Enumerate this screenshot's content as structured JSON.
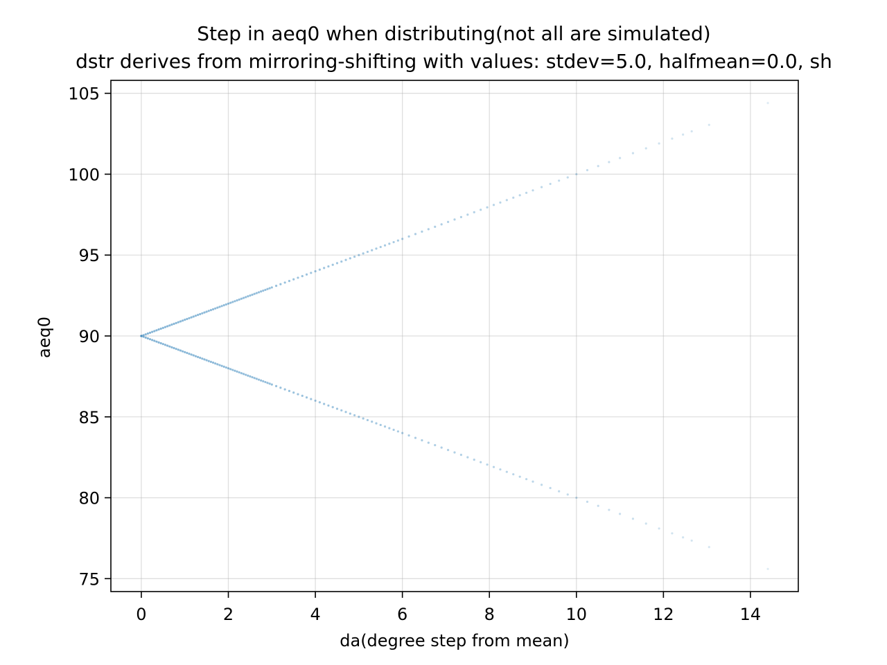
{
  "chart_data": {
    "type": "scatter",
    "title": "Step in aeq0 when distributing(not all are simulated)",
    "subtitle": "dstr derives from mirroring-shifting with values: stdev=5.0, halfmean=0.0, sh",
    "xlabel": "da(degree step from mean)",
    "ylabel": "aeq0",
    "xlim": [
      -0.7,
      15.1
    ],
    "ylim": [
      74.2,
      105.8
    ],
    "xticks": [
      0,
      2,
      4,
      6,
      8,
      10,
      12,
      14
    ],
    "yticks": [
      75,
      80,
      85,
      90,
      95,
      100,
      105
    ],
    "grid": true,
    "color": "#1f77b4",
    "center": 90,
    "series": [
      {
        "x": [
          0.0,
          0.05,
          0.1,
          0.15,
          0.2,
          0.25,
          0.3,
          0.35,
          0.4,
          0.45,
          0.5,
          0.55,
          0.6,
          0.65,
          0.7,
          0.75,
          0.8,
          0.85,
          0.9,
          0.95,
          1.0,
          1.05,
          1.1,
          1.15,
          1.2,
          1.25,
          1.3,
          1.35,
          1.4,
          1.45,
          1.5,
          1.55,
          1.6,
          1.65,
          1.7,
          1.75,
          1.8,
          1.85,
          1.9,
          1.95,
          2.0,
          2.05,
          2.1,
          2.15,
          2.2,
          2.25,
          2.3,
          2.35,
          2.4,
          2.45,
          2.5,
          2.55,
          2.6,
          2.65,
          2.7,
          2.75,
          2.8,
          2.85,
          2.9,
          2.95,
          3.0,
          3.1,
          3.2,
          3.3,
          3.4,
          3.5,
          3.6,
          3.7,
          3.8,
          3.9,
          4.0,
          4.1,
          4.2,
          4.3,
          4.4,
          4.5,
          4.6,
          4.7,
          4.8,
          4.9,
          5.0,
          5.1,
          5.2,
          5.3,
          5.4,
          5.5,
          5.6,
          5.7,
          5.8,
          5.9,
          6.0,
          6.15,
          6.3,
          6.45,
          6.6,
          6.75,
          6.9,
          7.05,
          7.2,
          7.35,
          7.5,
          7.65,
          7.8,
          7.95,
          8.1,
          8.25,
          8.4,
          8.55,
          8.7,
          8.85,
          9.0,
          9.2,
          9.4,
          9.6,
          9.8,
          10.0,
          10.25,
          10.5,
          10.75,
          11.0,
          11.3,
          11.6,
          11.9,
          12.2,
          12.45,
          12.65,
          13.05,
          14.4
        ],
        "y": [
          90.0,
          90.05,
          90.1,
          90.15,
          90.2,
          90.25,
          90.3,
          90.35,
          90.4,
          90.45,
          90.5,
          90.55,
          90.6,
          90.65,
          90.7,
          90.75,
          90.8,
          90.85,
          90.9,
          90.95,
          91.0,
          91.05,
          91.1,
          91.15,
          91.2,
          91.25,
          91.3,
          91.35,
          91.4,
          91.45,
          91.5,
          91.55,
          91.6,
          91.65,
          91.7,
          91.75,
          91.8,
          91.85,
          91.9,
          91.95,
          92.0,
          92.05,
          92.1,
          92.15,
          92.2,
          92.25,
          92.3,
          92.35,
          92.4,
          92.45,
          92.5,
          92.55,
          92.6,
          92.65,
          92.7,
          92.75,
          92.8,
          92.85,
          92.9,
          92.95,
          93.0,
          93.1,
          93.2,
          93.3,
          93.4,
          93.5,
          93.6,
          93.7,
          93.8,
          93.9,
          94.0,
          94.1,
          94.2,
          94.3,
          94.4,
          94.5,
          94.6,
          94.7,
          94.8,
          94.9,
          95.0,
          95.1,
          95.2,
          95.3,
          95.4,
          95.5,
          95.6,
          95.7,
          95.8,
          95.9,
          96.0,
          96.15,
          96.3,
          96.45,
          96.6,
          96.75,
          96.9,
          97.05,
          97.2,
          97.35,
          97.5,
          97.65,
          97.8,
          97.95,
          98.1,
          98.25,
          98.4,
          98.55,
          98.7,
          98.85,
          99.0,
          99.2,
          99.4,
          99.6,
          99.8,
          100.0,
          100.25,
          100.5,
          100.75,
          101.0,
          101.3,
          101.6,
          101.9,
          102.2,
          102.45,
          102.65,
          103.05,
          104.4
        ]
      },
      {
        "x": [
          0.0,
          0.05,
          0.1,
          0.15,
          0.2,
          0.25,
          0.3,
          0.35,
          0.4,
          0.45,
          0.5,
          0.55,
          0.6,
          0.65,
          0.7,
          0.75,
          0.8,
          0.85,
          0.9,
          0.95,
          1.0,
          1.05,
          1.1,
          1.15,
          1.2,
          1.25,
          1.3,
          1.35,
          1.4,
          1.45,
          1.5,
          1.55,
          1.6,
          1.65,
          1.7,
          1.75,
          1.8,
          1.85,
          1.9,
          1.95,
          2.0,
          2.05,
          2.1,
          2.15,
          2.2,
          2.25,
          2.3,
          2.35,
          2.4,
          2.45,
          2.5,
          2.55,
          2.6,
          2.65,
          2.7,
          2.75,
          2.8,
          2.85,
          2.9,
          2.95,
          3.0,
          3.1,
          3.2,
          3.3,
          3.4,
          3.5,
          3.6,
          3.7,
          3.8,
          3.9,
          4.0,
          4.1,
          4.2,
          4.3,
          4.4,
          4.5,
          4.6,
          4.7,
          4.8,
          4.9,
          5.0,
          5.1,
          5.2,
          5.3,
          5.4,
          5.5,
          5.6,
          5.7,
          5.8,
          5.9,
          6.0,
          6.15,
          6.3,
          6.45,
          6.6,
          6.75,
          6.9,
          7.05,
          7.2,
          7.35,
          7.5,
          7.65,
          7.8,
          7.95,
          8.1,
          8.25,
          8.4,
          8.55,
          8.7,
          8.85,
          9.0,
          9.2,
          9.4,
          9.6,
          9.8,
          10.0,
          10.25,
          10.5,
          10.75,
          11.0,
          11.3,
          11.6,
          11.9,
          12.2,
          12.45,
          12.65,
          13.05,
          14.4
        ],
        "y": [
          90.0,
          89.95,
          89.9,
          89.85,
          89.8,
          89.75,
          89.7,
          89.65,
          89.6,
          89.55,
          89.5,
          89.45,
          89.4,
          89.35,
          89.3,
          89.25,
          89.2,
          89.15,
          89.1,
          89.05,
          89.0,
          88.95,
          88.9,
          88.85,
          88.8,
          88.75,
          88.7,
          88.65,
          88.6,
          88.55,
          88.5,
          88.45,
          88.4,
          88.35,
          88.3,
          88.25,
          88.2,
          88.15,
          88.1,
          88.05,
          88.0,
          87.95,
          87.9,
          87.85,
          87.8,
          87.75,
          87.7,
          87.65,
          87.6,
          87.55,
          87.5,
          87.45,
          87.4,
          87.35,
          87.3,
          87.25,
          87.2,
          87.15,
          87.1,
          87.05,
          87.0,
          86.9,
          86.8,
          86.7,
          86.6,
          86.5,
          86.4,
          86.3,
          86.2,
          86.1,
          86.0,
          85.9,
          85.8,
          85.7,
          85.6,
          85.5,
          85.4,
          85.3,
          85.2,
          85.1,
          85.0,
          84.9,
          84.8,
          84.7,
          84.6,
          84.5,
          84.4,
          84.3,
          84.2,
          84.1,
          84.0,
          83.85,
          83.7,
          83.55,
          83.4,
          83.25,
          83.1,
          82.95,
          82.8,
          82.65,
          82.5,
          82.35,
          82.2,
          82.05,
          81.9,
          81.75,
          81.6,
          81.45,
          81.3,
          81.15,
          81.0,
          80.8,
          80.6,
          80.4,
          80.2,
          80.0,
          79.75,
          79.5,
          79.25,
          79.0,
          78.7,
          78.4,
          78.1,
          77.8,
          77.55,
          77.35,
          76.95,
          75.6
        ]
      }
    ]
  }
}
